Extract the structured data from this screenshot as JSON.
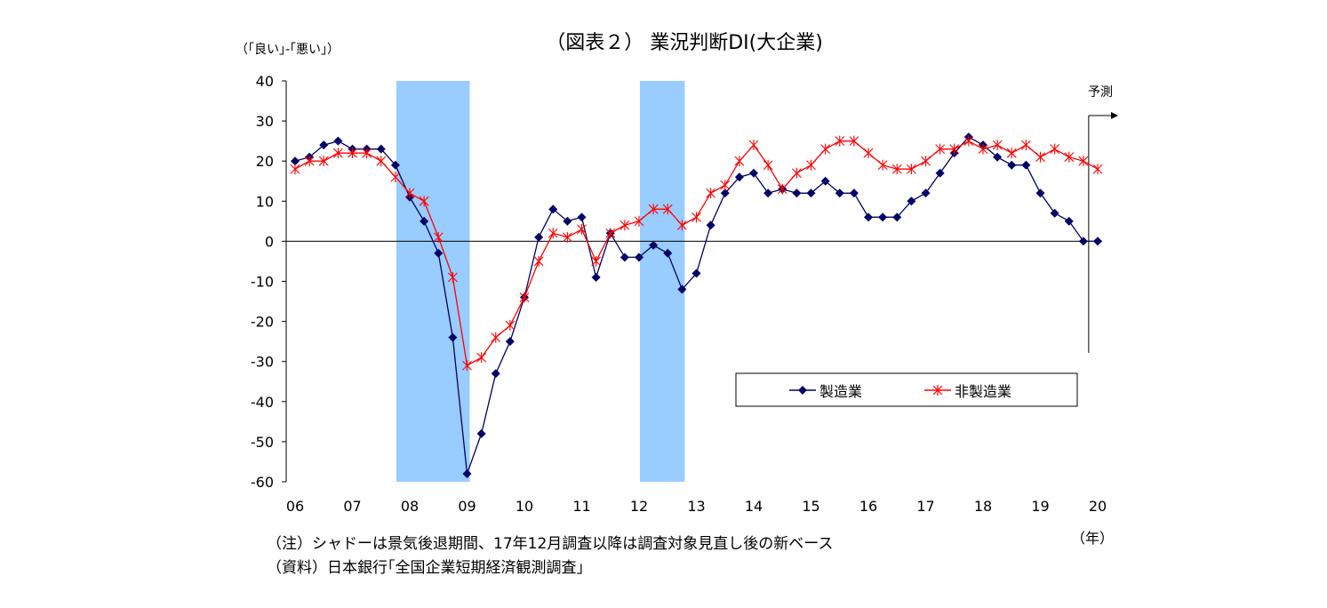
{
  "chart_data": {
    "type": "line",
    "title": "（図表２） 業況判断DI(大企業)",
    "ylabel": "（｢良い｣-｢悪い｣）",
    "xlabel": "（年）",
    "ylim": [
      -60,
      40
    ],
    "yticks": [
      40,
      30,
      20,
      10,
      0,
      -10,
      -20,
      -30,
      -40,
      -50,
      -60
    ],
    "year_labels": [
      "06",
      "07",
      "08",
      "09",
      "10",
      "11",
      "12",
      "13",
      "14",
      "15",
      "16",
      "17",
      "18",
      "19",
      "20"
    ],
    "forecast_label": "予測",
    "shaded_periods": [
      {
        "start": 2007.75,
        "end": 2009.0
      },
      {
        "start": 2012.0,
        "end": 2012.75
      }
    ],
    "x": [
      2006.0,
      2006.25,
      2006.5,
      2006.75,
      2007.0,
      2007.25,
      2007.5,
      2007.75,
      2008.0,
      2008.25,
      2008.5,
      2008.75,
      2009.0,
      2009.25,
      2009.5,
      2009.75,
      2010.0,
      2010.25,
      2010.5,
      2010.75,
      2011.0,
      2011.25,
      2011.5,
      2011.75,
      2012.0,
      2012.25,
      2012.5,
      2012.75,
      2013.0,
      2013.25,
      2013.5,
      2013.75,
      2014.0,
      2014.25,
      2014.5,
      2014.75,
      2015.0,
      2015.25,
      2015.5,
      2015.75,
      2016.0,
      2016.25,
      2016.5,
      2016.75,
      2017.0,
      2017.25,
      2017.5,
      2017.75,
      2018.0,
      2018.25,
      2018.5,
      2018.75,
      2019.0,
      2019.25,
      2019.5,
      2019.75,
      2020.0
    ],
    "series": [
      {
        "name": "製造業",
        "color": "#000066",
        "marker": "diamond",
        "values": [
          20,
          21,
          24,
          25,
          23,
          23,
          23,
          19,
          11,
          5,
          -3,
          -24,
          -58,
          -48,
          -33,
          -25,
          -14,
          1,
          8,
          5,
          6,
          -9,
          2,
          -4,
          -4,
          -1,
          -3,
          -12,
          -8,
          4,
          12,
          16,
          17,
          12,
          13,
          12,
          12,
          15,
          12,
          12,
          6,
          6,
          6,
          10,
          12,
          17,
          22,
          26,
          24,
          21,
          19,
          19,
          12,
          7,
          5,
          0,
          0
        ]
      },
      {
        "name": "非製造業",
        "color": "#ff0000",
        "marker": "star",
        "values": [
          18,
          20,
          20,
          22,
          22,
          22,
          20,
          16,
          12,
          10,
          1,
          -9,
          -31,
          -29,
          -24,
          -21,
          -14,
          -5,
          2,
          1,
          3,
          -5,
          2,
          4,
          5,
          8,
          8,
          4,
          6,
          12,
          14,
          20,
          24,
          19,
          13,
          17,
          19,
          23,
          25,
          25,
          22,
          19,
          18,
          18,
          20,
          23,
          23,
          25,
          23,
          24,
          22,
          24,
          21,
          23,
          21,
          20,
          18
        ]
      }
    ]
  },
  "notes": {
    "line1": "（注）シャドーは景気後退期間、17年12月調査以降は調査対象見直し後の新ベース",
    "line2": "（資料）日本銀行｢全国企業短期経済観測調査｣"
  }
}
